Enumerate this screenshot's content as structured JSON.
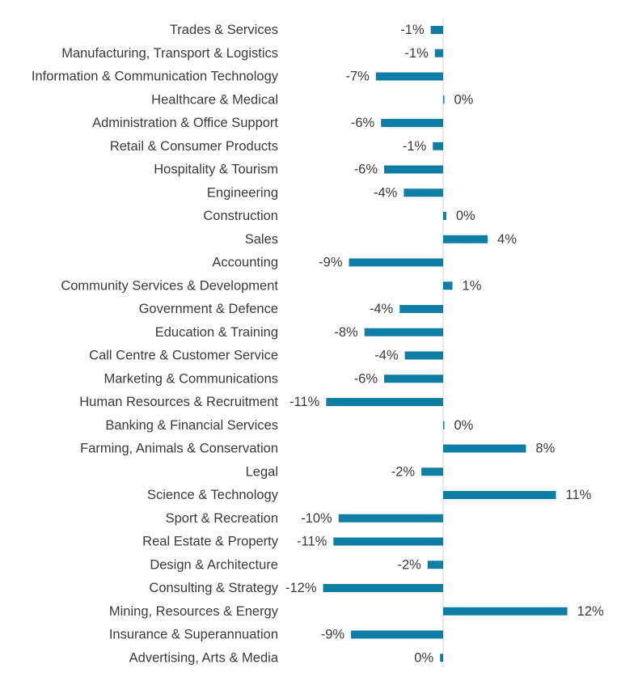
{
  "chart_data": {
    "type": "bar",
    "orientation": "horizontal",
    "title": "",
    "xlabel": "",
    "ylabel": "",
    "grid": false,
    "bar_color": "#0e7ea6",
    "axis_color": "#d0d0d0",
    "categories": [
      "Trades & Services",
      "Manufacturing, Transport & Logistics",
      "Information & Communication Technology",
      "Healthcare & Medical",
      "Administration & Office Support",
      "Retail & Consumer Products",
      "Hospitality & Tourism",
      "Engineering",
      "Construction",
      "Sales",
      "Accounting",
      "Community Services & Development",
      "Government & Defence",
      "Education & Training",
      "Call Centre & Customer Service",
      "Marketing & Communications",
      "Human Resources & Recruitment",
      "Banking & Financial Services",
      "Farming, Animals & Conservation",
      "Legal",
      "Science & Technology",
      "Sport & Recreation",
      "Real Estate & Property",
      "Design & Architecture",
      "Consulting & Strategy",
      "Mining, Resources & Energy",
      "Insurance & Superannuation",
      "Advertising, Arts & Media"
    ],
    "values": [
      -1.2,
      -0.8,
      -6.5,
      0.05,
      -6.0,
      -1.0,
      -5.7,
      -3.8,
      0.3,
      4.3,
      -9.1,
      0.9,
      -4.2,
      -7.6,
      -3.7,
      -5.7,
      -11.3,
      0.05,
      8.0,
      -2.1,
      10.9,
      -10.1,
      -10.6,
      -1.5,
      -11.6,
      12.0,
      -8.9,
      -0.3
    ],
    "value_labels": [
      "-1%",
      "-1%",
      "-7%",
      "0%",
      "-6%",
      "-1%",
      "-6%",
      "-4%",
      "0%",
      "4%",
      "-9%",
      "1%",
      "-4%",
      "-8%",
      "-4%",
      "-6%",
      "-11%",
      "0%",
      "8%",
      "-2%",
      "11%",
      "-10%",
      "-11%",
      "-2%",
      "-12%",
      "12%",
      "-9%",
      "0%"
    ],
    "xlim": [
      -14,
      15
    ]
  }
}
